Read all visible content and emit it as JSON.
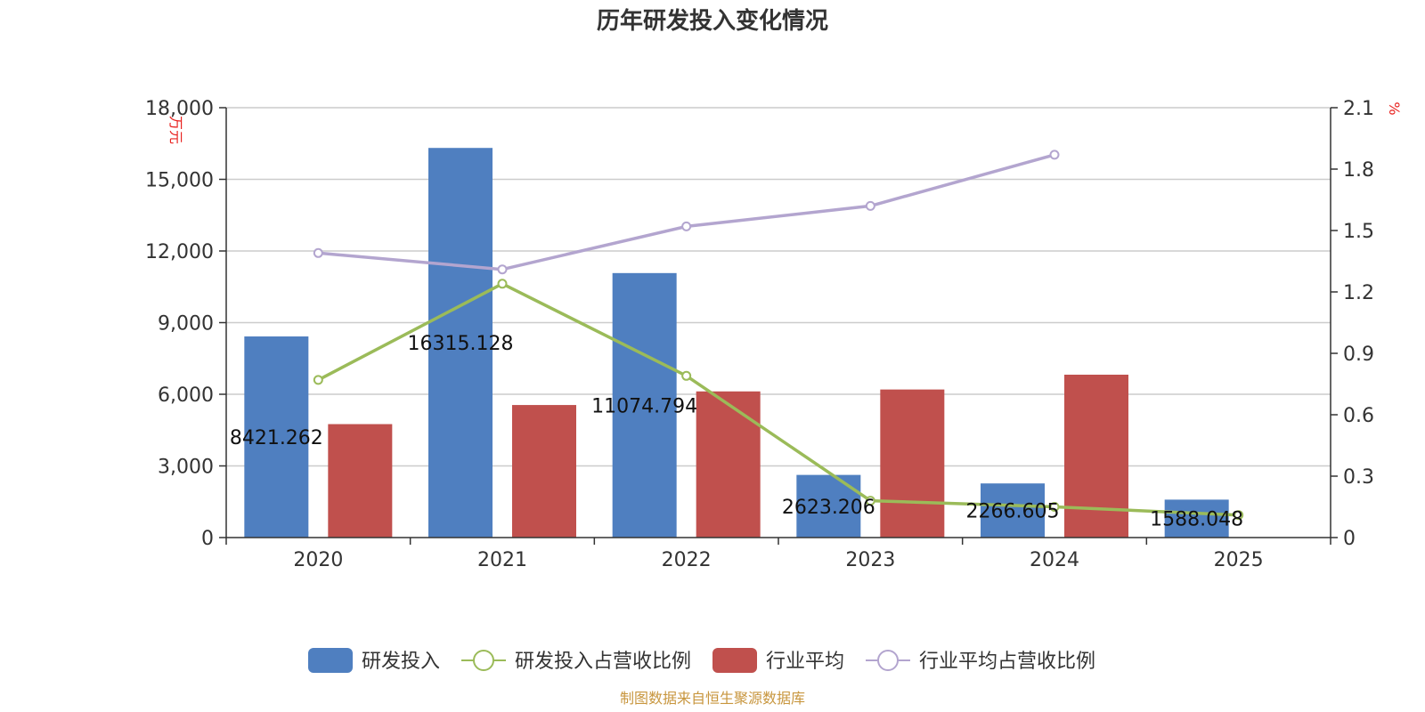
{
  "chart_data": {
    "type": "bar",
    "title": "历年研发投入变化情况",
    "categories": [
      "2020",
      "2021",
      "2022",
      "2023",
      "2024",
      "2025"
    ],
    "y_left": {
      "unit": "万元",
      "ticks": [
        "0",
        "3,000",
        "6,000",
        "9,000",
        "12,000",
        "15,000",
        "18,000"
      ],
      "range": [
        0,
        18000
      ]
    },
    "y_right": {
      "unit": "%",
      "ticks": [
        "0",
        "0.3",
        "0.6",
        "0.9",
        "1.2",
        "1.5",
        "1.8",
        "2.1"
      ],
      "range": [
        0,
        2.1
      ]
    },
    "bar_series": [
      {
        "name": "研发投入",
        "color": "#4f7fc0",
        "values": [
          8421.262,
          16315.128,
          11074.794,
          2623.206,
          2266.605,
          1588.048
        ],
        "labels": [
          "8421.262",
          "16315.128",
          "11074.794",
          "2623.206",
          "2266.605",
          "1588.048"
        ]
      },
      {
        "name": "行业平均",
        "color": "#c0504d",
        "values": [
          4750,
          5550,
          6120,
          6200,
          6820,
          null
        ]
      }
    ],
    "line_series": [
      {
        "name": "研发投入占营收比例",
        "color": "#9bbb59",
        "axis": "right",
        "values": [
          0.77,
          1.24,
          0.79,
          0.18,
          0.15,
          0.11
        ]
      },
      {
        "name": "行业平均占营收比例",
        "color": "#b3a5cf",
        "axis": "right",
        "values": [
          1.39,
          1.31,
          1.52,
          1.62,
          1.87,
          null
        ]
      }
    ],
    "legend": {
      "position": "bottom"
    },
    "grid": true
  },
  "source_text": "制图数据来自恒生聚源数据库"
}
